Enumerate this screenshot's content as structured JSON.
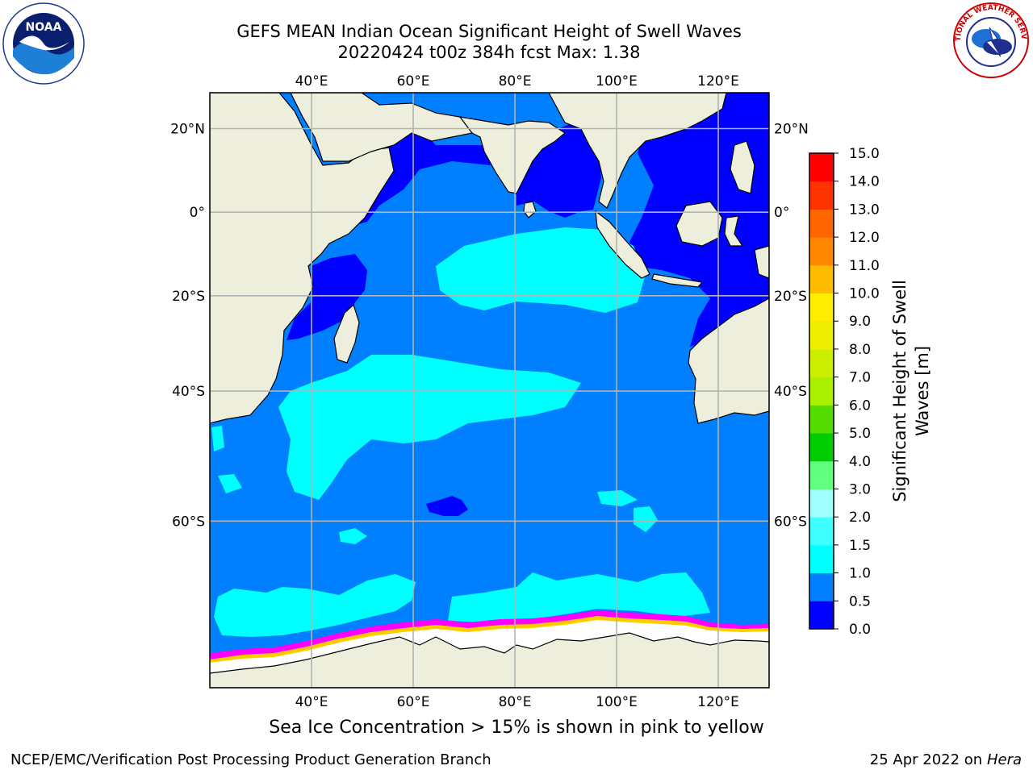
{
  "header": {
    "title_line1": "GEFS MEAN Indian Ocean Significant Height of Swell Waves",
    "title_line2": "20220424 t00z 384h fcst   Max: 1.38"
  },
  "logos": {
    "noaa_text": "NOAA",
    "nws_text": "NATIONAL WEATHER SERVICE"
  },
  "map": {
    "lon_range": [
      20,
      130
    ],
    "lat_range": [
      -75,
      28
    ],
    "lon_ticks": [
      {
        "value": 40,
        "label": "40°E"
      },
      {
        "value": 60,
        "label": "60°E"
      },
      {
        "value": 80,
        "label": "80°E"
      },
      {
        "value": 100,
        "label": "100°E"
      },
      {
        "value": 120,
        "label": "120°E"
      }
    ],
    "lat_ticks": [
      {
        "value": 20,
        "label": "20°N"
      },
      {
        "value": 0,
        "label": "0°"
      },
      {
        "value": -20,
        "label": "20°S"
      },
      {
        "value": -40,
        "label": "40°S"
      },
      {
        "value": -60,
        "label": "60°S"
      }
    ],
    "grid": true,
    "colors": {
      "land": "#eeeedd",
      "ocean_base": "#0080ff",
      "calm": "#0000ff",
      "swell_1_0_1_5": "#00ffff",
      "ice": "#ffffff",
      "ice_edge": [
        "#ff00ff",
        "#ff99cc",
        "#ffcc00"
      ],
      "grid": "#b3b3b3"
    }
  },
  "colorbar": {
    "title_line1": "Significant Height of Swell",
    "title_line2": "Waves [m]",
    "levels": [
      "0.0",
      "0.5",
      "1.0",
      "1.5",
      "2.0",
      "3.0",
      "4.0",
      "5.0",
      "6.0",
      "7.0",
      "8.0",
      "9.0",
      "10.0",
      "11.0",
      "12.0",
      "13.0",
      "14.0",
      "15.0"
    ],
    "colors": [
      "#0000ff",
      "#0080ff",
      "#00ffff",
      "#40ffff",
      "#a0ffff",
      "#60ff80",
      "#00cc00",
      "#55dd00",
      "#aaee00",
      "#ccee00",
      "#eeee00",
      "#ffee00",
      "#ffbb00",
      "#ff8800",
      "#ff6600",
      "#ff3300",
      "#ff0000"
    ]
  },
  "footer": {
    "note": "Sea Ice Concentration > 15% is shown in pink to yellow",
    "credit": "NCEP/EMC/Verification Post Processing Product Generation Branch",
    "date": "25 Apr 2022 on ",
    "host": "Hera"
  }
}
